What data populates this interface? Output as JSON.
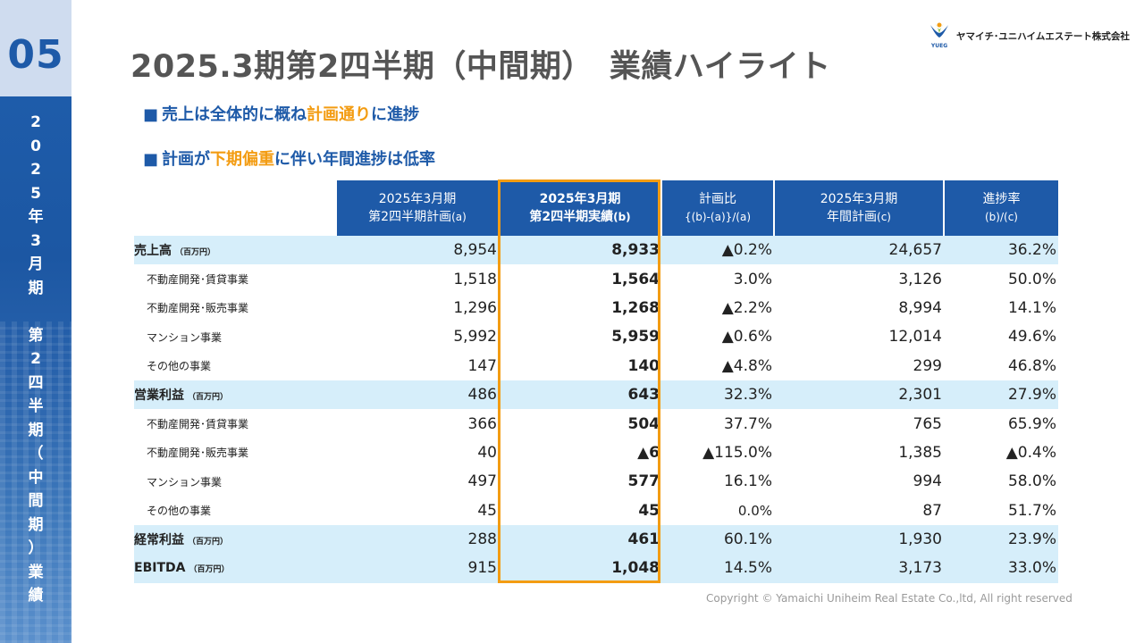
{
  "sidebar": {
    "section_number": "05",
    "vertical_title": [
      "2",
      "0",
      "2",
      "5",
      "年",
      "3",
      "月",
      "期",
      "",
      "第",
      "2",
      "四",
      "半",
      "期",
      "（",
      "中",
      "間",
      "期",
      "）",
      "業",
      "績"
    ]
  },
  "header": {
    "title": "2025.3期第2四半期（中間期）　業績ハイライト",
    "company": "ヤマイチ･ユニハイムエステート株式会社",
    "logo_text": "YUEG"
  },
  "bullets": [
    {
      "marker": "■",
      "pre": "売上は全体的に概ね",
      "highlight": "計画通り",
      "post": "に進捗"
    },
    {
      "marker": "■",
      "pre": "計画が",
      "highlight": "下期偏重",
      "post": "に伴い年間進捗は低率"
    }
  ],
  "table": {
    "headers": [
      {
        "line1": "2025年3月期",
        "line2": "第2四半期計画",
        "line2_small": "(a)"
      },
      {
        "line1": "2025年3月期",
        "line2": "第2四半期実績",
        "line2_small": "(b)"
      },
      {
        "line1": "計画比",
        "line2": "",
        "line2_small": "{(b)-(a)}/(a)"
      },
      {
        "line1": "2025年3月期",
        "line2": "年間計画",
        "line2_small": "(c)"
      },
      {
        "line1": "進捗率",
        "line2": "",
        "line2_small": "(b)/(c)"
      }
    ],
    "rows": [
      {
        "label": "売上高",
        "unit": "（百万円）",
        "major": true,
        "plan": "8,954",
        "actual": "8,933",
        "ratio": "▲0.2%",
        "annual": "24,657",
        "progress": "36.2%"
      },
      {
        "label": "不動産開発･賃貸事業",
        "unit": "",
        "major": false,
        "plan": "1,518",
        "actual": "1,564",
        "ratio": "3.0%",
        "annual": "3,126",
        "progress": "50.0%"
      },
      {
        "label": "不動産開発･販売事業",
        "unit": "",
        "major": false,
        "plan": "1,296",
        "actual": "1,268",
        "ratio": "▲2.2%",
        "annual": "8,994",
        "progress": "14.1%"
      },
      {
        "label": "マンション事業",
        "unit": "",
        "major": false,
        "plan": "5,992",
        "actual": "5,959",
        "ratio": "▲0.6%",
        "annual": "12,014",
        "progress": "49.6%"
      },
      {
        "label": "その他の事業",
        "unit": "",
        "major": false,
        "plan": "147",
        "actual": "140",
        "ratio": "▲4.8%",
        "annual": "299",
        "progress": "46.8%"
      },
      {
        "label": "営業利益",
        "unit": "（百万円）",
        "major": true,
        "plan": "486",
        "actual": "643",
        "ratio": "32.3%",
        "annual": "2,301",
        "progress": "27.9%"
      },
      {
        "label": "不動産開発･賃貸事業",
        "unit": "",
        "major": false,
        "plan": "366",
        "actual": "504",
        "ratio": "37.7%",
        "annual": "765",
        "progress": "65.9%"
      },
      {
        "label": "不動産開発･販売事業",
        "unit": "",
        "major": false,
        "plan": "40",
        "actual": "▲6",
        "ratio": "▲115.0%",
        "annual": "1,385",
        "progress": "▲0.4%"
      },
      {
        "label": "マンション事業",
        "unit": "",
        "major": false,
        "plan": "497",
        "actual": "577",
        "ratio": "16.1%",
        "annual": "994",
        "progress": "58.0%"
      },
      {
        "label": "その他の事業",
        "unit": "",
        "major": false,
        "plan": "45",
        "actual": "45",
        "ratio": "0.0%",
        "annual": "87",
        "progress": "51.7%"
      },
      {
        "label": "経常利益",
        "unit": "（百万円）",
        "major": true,
        "plan": "288",
        "actual": "461",
        "ratio": "60.1%",
        "annual": "1,930",
        "progress": "23.9%"
      },
      {
        "label": "EBITDA",
        "unit": "（百万円）",
        "major": true,
        "plan": "915",
        "actual": "1,048",
        "ratio": "14.5%",
        "annual": "3,173",
        "progress": "33.0%"
      }
    ]
  },
  "footer": {
    "copyright": "Copyright © Yamaichi Uniheim Real Estate Co.,ltd, All right reserved"
  },
  "colors": {
    "brand_blue": "#1e5aa8",
    "highlight_orange": "#f39c12",
    "major_row_bg": "#d6eefa",
    "title_gray": "#555555"
  }
}
